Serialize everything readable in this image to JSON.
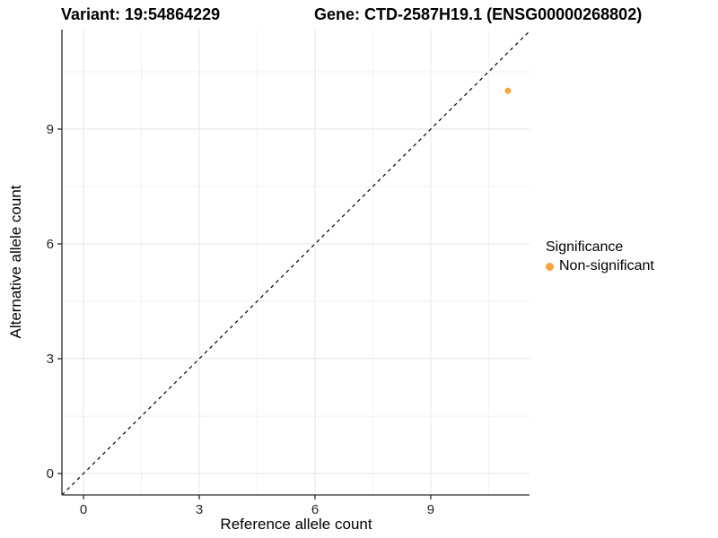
{
  "titles": {
    "variant": "Variant: 19:54864229",
    "gene": "Gene: CTD-2587H19.1 (ENSG00000268802)"
  },
  "axes": {
    "x_label": "Reference allele count",
    "y_label": "Alternative allele count"
  },
  "legend": {
    "title": "Significance",
    "items": [
      {
        "label": "Non-significant",
        "color": "#FAA43A",
        "marker": "circle-icon"
      }
    ]
  },
  "colors": {
    "point_orange": "#FAA43A",
    "axis_line": "#2a2a2a",
    "tick_mark": "#2a2a2a",
    "tick_label": "#262626",
    "grid_major": "#e6e6e6",
    "grid_minor": "#f2f2f2",
    "identity_line": "#000000",
    "background": "#ffffff"
  },
  "chart_data": {
    "type": "scatter",
    "title": "Variant: 19:54864229 — Gene: CTD-2587H19.1 (ENSG00000268802)",
    "xlabel": "Reference allele count",
    "ylabel": "Alternative allele count",
    "xlim": [
      -0.56,
      11.56
    ],
    "ylim": [
      -0.56,
      11.6
    ],
    "x_major_ticks": [
      0,
      3,
      6,
      9
    ],
    "y_major_ticks": [
      0,
      3,
      6,
      9
    ],
    "x_minor_ticks": [
      1.5,
      4.5,
      7.5,
      10.5
    ],
    "y_minor_ticks": [
      1.5,
      4.5,
      7.5,
      10.5
    ],
    "grid": true,
    "legend_position": "right",
    "series": [
      {
        "name": "Non-significant",
        "color": "#FAA43A",
        "marker_radius": 3.5,
        "points": [
          {
            "x": 11,
            "y": 10
          }
        ]
      }
    ],
    "reference_line": {
      "type": "identity",
      "slope": 1,
      "intercept": 0,
      "style": "dashed",
      "color": "#000000"
    }
  }
}
